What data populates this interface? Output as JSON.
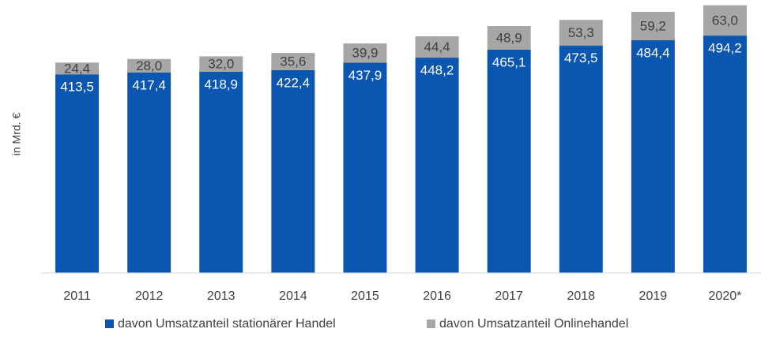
{
  "chart_data": {
    "type": "stacked_bar",
    "y_axis_label": "in Mrd. €",
    "categories": [
      "2011",
      "2012",
      "2013",
      "2014",
      "2015",
      "2016",
      "2017",
      "2018",
      "2019",
      "2020*"
    ],
    "series": [
      {
        "name": "davon Umsatzanteil stationärer Handel",
        "color": "#0b56b0",
        "values": [
          413.5,
          417.4,
          418.9,
          422.4,
          437.9,
          448.2,
          465.1,
          473.5,
          484.4,
          494.2
        ],
        "value_labels": [
          "413,5",
          "417,4",
          "418,9",
          "422,4",
          "437,9",
          "448,2",
          "465,1",
          "473,5",
          "484,4",
          "494,2"
        ]
      },
      {
        "name": "davon Umsatzanteil Onlinehandel",
        "color": "#a6a6a6",
        "values": [
          24.4,
          28.0,
          32.0,
          35.6,
          39.9,
          44.4,
          48.9,
          53.3,
          59.2,
          63.0
        ],
        "value_labels": [
          "24,4",
          "28,0",
          "32,0",
          "35,6",
          "39,9",
          "44,4",
          "48,9",
          "53,3",
          "59,2",
          "63,0"
        ]
      }
    ],
    "ylim": [
      0,
      560
    ]
  }
}
